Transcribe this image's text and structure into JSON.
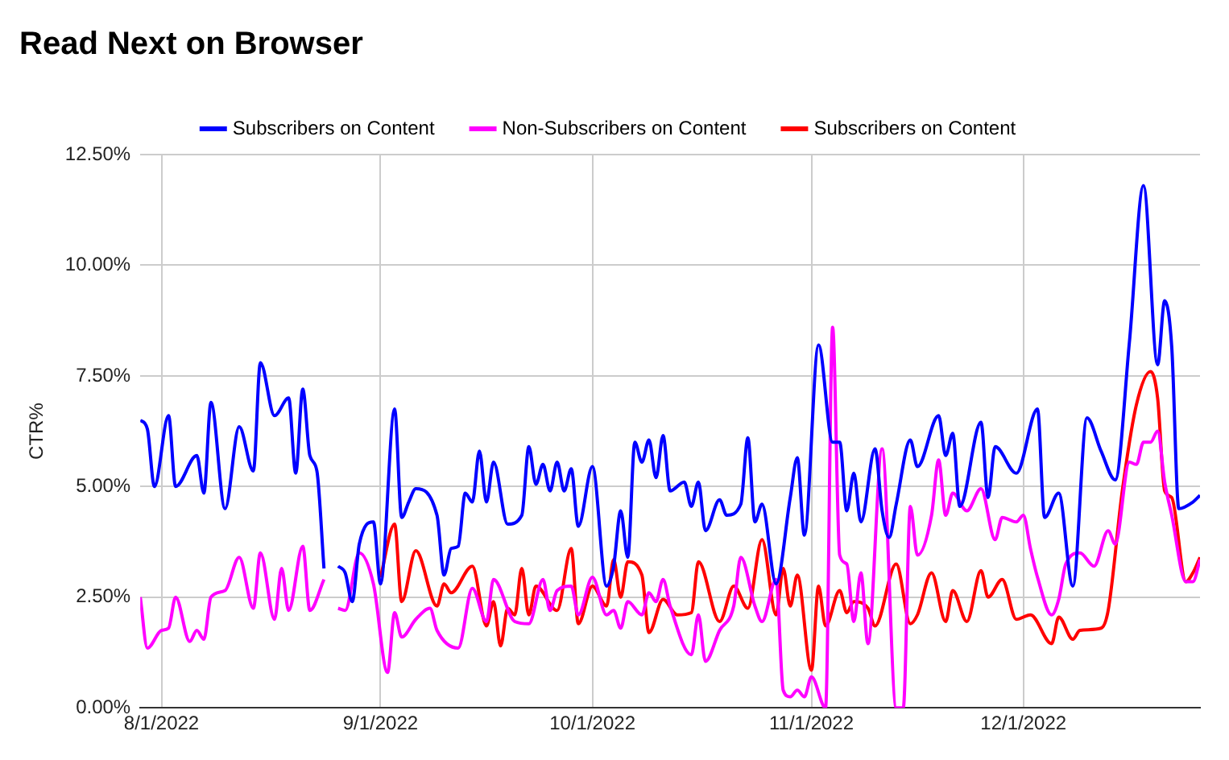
{
  "chart_data": {
    "type": "line",
    "title": "Read Next on Browser",
    "ylabel": "CTR%",
    "xlim": [
      "2022-07-29",
      "2022-12-26"
    ],
    "xticks": [
      {
        "value": "2022-08-01",
        "label": "8/1/2022"
      },
      {
        "value": "2022-09-01",
        "label": "9/1/2022"
      },
      {
        "value": "2022-10-01",
        "label": "10/1/2022"
      },
      {
        "value": "2022-11-01",
        "label": "11/1/2022"
      },
      {
        "value": "2022-12-01",
        "label": "12/1/2022"
      }
    ],
    "ylim": [
      0,
      12.5
    ],
    "yticks": [
      {
        "value": 0,
        "label": "0.00%"
      },
      {
        "value": 2.5,
        "label": "2.50%"
      },
      {
        "value": 5,
        "label": "5.00%"
      },
      {
        "value": 7.5,
        "label": "7.50%"
      },
      {
        "value": 10,
        "label": "10.00%"
      },
      {
        "value": 12.5,
        "label": "12.50%"
      }
    ],
    "grid": true,
    "legend": "top",
    "marker": "none",
    "line_style": "solid",
    "series": [
      {
        "name": "Subscribers on Content",
        "color": "#0000ff",
        "x": [
          "2022-07-29",
          "2022-07-30",
          "2022-07-31",
          "2022-08-02",
          "2022-08-03",
          "2022-08-06",
          "2022-08-07",
          "2022-08-08",
          "2022-08-10",
          "2022-08-12",
          "2022-08-14",
          "2022-08-15",
          "2022-08-17",
          "2022-08-19",
          "2022-08-20",
          "2022-08-21",
          "2022-08-22",
          "2022-08-23",
          "2022-08-24",
          "2022-08-25",
          "2022-08-26",
          "2022-08-27",
          "2022-08-28",
          "2022-08-29",
          "2022-08-31",
          "2022-09-01",
          "2022-09-03",
          "2022-09-04",
          "2022-09-05",
          "2022-09-06",
          "2022-09-09",
          "2022-09-10",
          "2022-09-11",
          "2022-09-12",
          "2022-09-13",
          "2022-09-14",
          "2022-09-15",
          "2022-09-16",
          "2022-09-17",
          "2022-09-19",
          "2022-09-21",
          "2022-09-22",
          "2022-09-23",
          "2022-09-24",
          "2022-09-25",
          "2022-09-26",
          "2022-09-27",
          "2022-09-28",
          "2022-09-29",
          "2022-10-01",
          "2022-10-03",
          "2022-10-04",
          "2022-10-05",
          "2022-10-06",
          "2022-10-07",
          "2022-10-08",
          "2022-10-09",
          "2022-10-10",
          "2022-10-11",
          "2022-10-12",
          "2022-10-14",
          "2022-10-15",
          "2022-10-16",
          "2022-10-17",
          "2022-10-19",
          "2022-10-20",
          "2022-10-22",
          "2022-10-23",
          "2022-10-24",
          "2022-10-25",
          "2022-10-27",
          "2022-10-29",
          "2022-10-30",
          "2022-10-31",
          "2022-11-02",
          "2022-11-04",
          "2022-11-05",
          "2022-11-06",
          "2022-11-07",
          "2022-11-08",
          "2022-11-10",
          "2022-11-11",
          "2022-11-12",
          "2022-11-13",
          "2022-11-15",
          "2022-11-16",
          "2022-11-19",
          "2022-11-20",
          "2022-11-21",
          "2022-11-22",
          "2022-11-25",
          "2022-11-26",
          "2022-11-27",
          "2022-11-30",
          "2022-12-03",
          "2022-12-04",
          "2022-12-06",
          "2022-12-08",
          "2022-12-10",
          "2022-12-12",
          "2022-12-14",
          "2022-12-16",
          "2022-12-18",
          "2022-12-20",
          "2022-12-21",
          "2022-12-22",
          "2022-12-23",
          "2022-12-25",
          "2022-12-26"
        ],
        "values": [
          6.5,
          6.3,
          5.0,
          6.6,
          5.0,
          5.7,
          4.85,
          6.9,
          4.5,
          6.35,
          5.35,
          7.8,
          6.6,
          7.0,
          5.3,
          7.2,
          5.7,
          5.35,
          3.15,
          null,
          3.2,
          3.05,
          2.4,
          3.7,
          4.2,
          2.8,
          6.75,
          4.3,
          4.65,
          4.95,
          4.35,
          3.0,
          3.6,
          3.65,
          4.85,
          4.65,
          5.8,
          4.65,
          5.55,
          4.15,
          4.35,
          5.9,
          5.05,
          5.5,
          4.9,
          5.55,
          4.9,
          5.4,
          4.1,
          5.45,
          2.75,
          3.2,
          4.45,
          3.4,
          6.0,
          5.55,
          6.05,
          5.2,
          6.15,
          4.9,
          5.1,
          4.55,
          5.1,
          4.0,
          4.7,
          4.35,
          4.6,
          6.1,
          4.2,
          4.6,
          2.8,
          4.75,
          5.65,
          3.9,
          8.2,
          6.0,
          6.0,
          4.45,
          5.3,
          4.2,
          5.85,
          4.45,
          3.85,
          4.6,
          6.05,
          5.45,
          6.6,
          5.7,
          6.2,
          4.55,
          6.45,
          4.75,
          5.9,
          5.3,
          6.75,
          4.3,
          4.85,
          2.75,
          6.55,
          5.8,
          5.15,
          8.25,
          11.8,
          7.75,
          9.2,
          8.15,
          4.5,
          4.65,
          4.8
        ]
      },
      {
        "name": "Non-Subscribers on Content",
        "color": "#ff00ff",
        "x": [
          "2022-07-29",
          "2022-07-30",
          "2022-08-01",
          "2022-08-02",
          "2022-08-03",
          "2022-08-05",
          "2022-08-06",
          "2022-08-07",
          "2022-08-08",
          "2022-08-10",
          "2022-08-12",
          "2022-08-14",
          "2022-08-15",
          "2022-08-17",
          "2022-08-18",
          "2022-08-19",
          "2022-08-21",
          "2022-08-22",
          "2022-08-24",
          "2022-08-25",
          "2022-08-26",
          "2022-08-27",
          "2022-08-29",
          "2022-08-31",
          "2022-09-02",
          "2022-09-03",
          "2022-09-04",
          "2022-09-06",
          "2022-09-08",
          "2022-09-09",
          "2022-09-12",
          "2022-09-14",
          "2022-09-16",
          "2022-09-17",
          "2022-09-20",
          "2022-09-22",
          "2022-09-24",
          "2022-09-25",
          "2022-09-26",
          "2022-09-28",
          "2022-09-29",
          "2022-10-01",
          "2022-10-03",
          "2022-10-04",
          "2022-10-05",
          "2022-10-06",
          "2022-10-08",
          "2022-10-09",
          "2022-10-10",
          "2022-10-11",
          "2022-10-12",
          "2022-10-15",
          "2022-10-16",
          "2022-10-17",
          "2022-10-19",
          "2022-10-21",
          "2022-10-22",
          "2022-10-24",
          "2022-10-25",
          "2022-10-27",
          "2022-10-28",
          "2022-10-29",
          "2022-10-30",
          "2022-10-31",
          "2022-11-01",
          "2022-11-03",
          "2022-11-04",
          "2022-11-05",
          "2022-11-06",
          "2022-11-07",
          "2022-11-08",
          "2022-11-09",
          "2022-11-11",
          "2022-11-13",
          "2022-11-14",
          "2022-11-15",
          "2022-11-16",
          "2022-11-18",
          "2022-11-19",
          "2022-11-20",
          "2022-11-21",
          "2022-11-23",
          "2022-11-25",
          "2022-11-27",
          "2022-11-28",
          "2022-11-30",
          "2022-12-01",
          "2022-12-02",
          "2022-12-03",
          "2022-12-05",
          "2022-12-06",
          "2022-12-07",
          "2022-12-09",
          "2022-12-11",
          "2022-12-13",
          "2022-12-14",
          "2022-12-16",
          "2022-12-17",
          "2022-12-18",
          "2022-12-19",
          "2022-12-20",
          "2022-12-21",
          "2022-12-22",
          "2022-12-24",
          "2022-12-25",
          "2022-12-26"
        ],
        "values": [
          2.5,
          1.35,
          1.75,
          1.8,
          2.5,
          1.5,
          1.75,
          1.55,
          2.5,
          2.65,
          3.4,
          2.25,
          3.5,
          2.0,
          3.15,
          2.2,
          3.65,
          2.2,
          2.9,
          null,
          2.25,
          2.2,
          3.5,
          2.8,
          0.8,
          2.15,
          1.6,
          2.0,
          2.25,
          1.75,
          1.35,
          2.7,
          1.95,
          2.9,
          1.95,
          1.9,
          2.9,
          2.2,
          2.65,
          2.75,
          2.1,
          2.95,
          2.1,
          2.2,
          1.8,
          2.4,
          2.1,
          2.6,
          2.4,
          2.9,
          2.3,
          1.2,
          2.1,
          1.05,
          1.75,
          2.3,
          3.4,
          2.3,
          1.95,
          2.9,
          0.4,
          0.25,
          0.4,
          0.25,
          0.7,
          0,
          8.6,
          3.45,
          3.25,
          1.95,
          3.05,
          1.45,
          5.85,
          0,
          0,
          4.55,
          3.45,
          4.35,
          5.6,
          4.35,
          4.85,
          4.45,
          4.95,
          3.8,
          4.3,
          4.2,
          4.35,
          3.6,
          2.95,
          2.1,
          2.45,
          3.25,
          3.5,
          3.2,
          4.0,
          3.7,
          5.55,
          5.5,
          6.0,
          6.0,
          6.25,
          5.1,
          4.35,
          2.85,
          2.85,
          3.35
        ]
      },
      {
        "name": "Subscribers on Content",
        "color": "#ff0000",
        "x": [
          "2022-09-01",
          "2022-09-03",
          "2022-09-04",
          "2022-09-06",
          "2022-09-09",
          "2022-09-10",
          "2022-09-11",
          "2022-09-14",
          "2022-09-16",
          "2022-09-17",
          "2022-09-18",
          "2022-09-19",
          "2022-09-20",
          "2022-09-21",
          "2022-09-22",
          "2022-09-23",
          "2022-09-26",
          "2022-09-28",
          "2022-09-29",
          "2022-10-01",
          "2022-10-03",
          "2022-10-04",
          "2022-10-05",
          "2022-10-06",
          "2022-10-08",
          "2022-10-09",
          "2022-10-11",
          "2022-10-13",
          "2022-10-15",
          "2022-10-16",
          "2022-10-19",
          "2022-10-21",
          "2022-10-23",
          "2022-10-25",
          "2022-10-27",
          "2022-10-28",
          "2022-10-29",
          "2022-10-30",
          "2022-11-01",
          "2022-11-02",
          "2022-11-03",
          "2022-11-05",
          "2022-11-06",
          "2022-11-07",
          "2022-11-09",
          "2022-11-10",
          "2022-11-13",
          "2022-11-15",
          "2022-11-16",
          "2022-11-18",
          "2022-11-20",
          "2022-11-21",
          "2022-11-23",
          "2022-11-25",
          "2022-11-26",
          "2022-11-28",
          "2022-11-30",
          "2022-12-02",
          "2022-12-05",
          "2022-12-06",
          "2022-12-08",
          "2022-12-09",
          "2022-12-12",
          "2022-12-13",
          "2022-12-15",
          "2022-12-17",
          "2022-12-19",
          "2022-12-20",
          "2022-12-21",
          "2022-12-22",
          "2022-12-24",
          "2022-12-25",
          "2022-12-26"
        ],
        "values": [
          2.95,
          4.15,
          2.4,
          3.55,
          2.3,
          2.8,
          2.6,
          3.2,
          1.85,
          2.4,
          1.4,
          2.25,
          2.1,
          3.15,
          2.1,
          2.75,
          2.2,
          3.6,
          1.9,
          2.75,
          2.3,
          3.35,
          2.5,
          3.3,
          3.0,
          1.7,
          2.45,
          2.1,
          2.15,
          3.3,
          1.95,
          2.75,
          2.25,
          3.8,
          2.1,
          3.15,
          2.3,
          3.0,
          0.85,
          2.75,
          1.85,
          2.65,
          2.15,
          2.4,
          2.25,
          1.85,
          3.25,
          1.9,
          2.1,
          3.05,
          1.95,
          2.65,
          1.95,
          3.1,
          2.5,
          2.9,
          2.0,
          2.1,
          1.45,
          2.05,
          1.55,
          1.75,
          1.8,
          2.2,
          4.9,
          6.85,
          7.6,
          7.0,
          4.9,
          4.75,
          2.85,
          3.05,
          3.4
        ]
      }
    ]
  }
}
